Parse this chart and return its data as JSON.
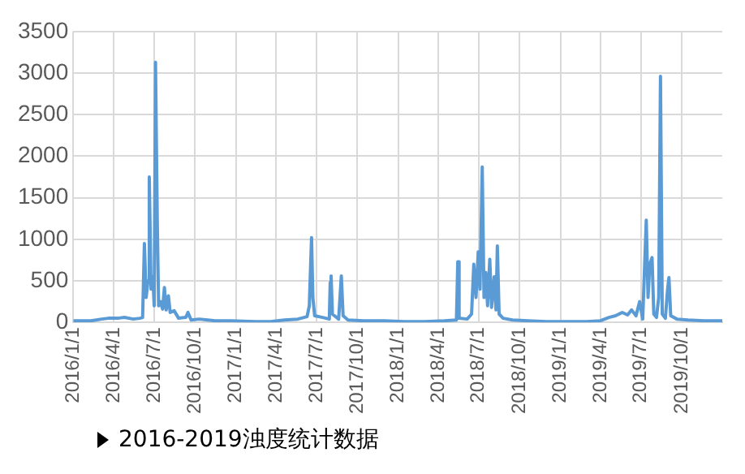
{
  "chart_data": {
    "type": "line",
    "annotations": [
      "2016-2019浊度统计数据"
    ],
    "x": [
      "2016-01-01",
      "2016-02-10",
      "2016-03-05",
      "2016-03-20",
      "2016-04-10",
      "2016-04-25",
      "2016-05-15",
      "2016-05-30",
      "2016-06-05",
      "2016-06-09",
      "2016-06-13",
      "2016-06-17",
      "2016-06-20",
      "2016-06-24",
      "2016-06-28",
      "2016-07-01",
      "2016-07-04",
      "2016-07-08",
      "2016-07-11",
      "2016-07-15",
      "2016-07-20",
      "2016-07-24",
      "2016-07-28",
      "2016-08-02",
      "2016-08-06",
      "2016-08-15",
      "2016-08-25",
      "2016-09-10",
      "2016-09-15",
      "2016-09-22",
      "2016-10-10",
      "2016-11-15",
      "2016-12-20",
      "2017-02-15",
      "2017-03-20",
      "2017-04-20",
      "2017-05-20",
      "2017-06-10",
      "2017-06-15",
      "2017-06-20",
      "2017-06-23",
      "2017-06-27",
      "2017-07-15",
      "2017-07-30",
      "2017-08-01",
      "2017-08-03",
      "2017-08-06",
      "2017-08-20",
      "2017-08-26",
      "2017-08-30",
      "2017-09-10",
      "2017-10-15",
      "2017-12-01",
      "2018-01-15",
      "2018-03-01",
      "2018-04-15",
      "2018-05-12",
      "2018-05-15",
      "2018-05-18",
      "2018-06-05",
      "2018-06-15",
      "2018-06-20",
      "2018-06-25",
      "2018-06-30",
      "2018-07-04",
      "2018-07-09",
      "2018-07-13",
      "2018-07-17",
      "2018-07-21",
      "2018-07-26",
      "2018-07-30",
      "2018-08-05",
      "2018-08-09",
      "2018-08-12",
      "2018-08-16",
      "2018-08-25",
      "2018-09-15",
      "2018-10-20",
      "2018-12-01",
      "2019-01-15",
      "2019-03-01",
      "2019-04-01",
      "2019-04-20",
      "2019-05-05",
      "2019-05-20",
      "2019-06-01",
      "2019-06-10",
      "2019-06-20",
      "2019-06-28",
      "2019-07-05",
      "2019-07-13",
      "2019-07-17",
      "2019-07-21",
      "2019-07-26",
      "2019-07-30",
      "2019-08-05",
      "2019-08-10",
      "2019-08-14",
      "2019-08-18",
      "2019-08-25",
      "2019-08-30",
      "2019-09-02",
      "2019-09-06",
      "2019-09-20",
      "2019-10-15",
      "2019-11-20",
      "2019-12-31"
    ],
    "series": [
      {
        "color": "#5b9bd5",
        "values": [
          20,
          20,
          40,
          50,
          50,
          60,
          40,
          50,
          60,
          950,
          300,
          500,
          1750,
          400,
          550,
          200,
          3130,
          1200,
          200,
          250,
          160,
          420,
          150,
          320,
          120,
          140,
          50,
          60,
          120,
          30,
          40,
          20,
          20,
          10,
          10,
          30,
          40,
          70,
          200,
          1020,
          300,
          80,
          60,
          40,
          480,
          560,
          100,
          40,
          560,
          80,
          30,
          20,
          20,
          10,
          10,
          20,
          30,
          730,
          50,
          40,
          100,
          700,
          300,
          850,
          400,
          1870,
          300,
          600,
          200,
          760,
          180,
          550,
          150,
          920,
          100,
          50,
          30,
          20,
          10,
          10,
          10,
          20,
          60,
          80,
          120,
          90,
          150,
          80,
          250,
          40,
          1230,
          300,
          700,
          780,
          100,
          60,
          300,
          2960,
          100,
          50,
          400,
          540,
          80,
          40,
          30,
          20,
          20
        ]
      }
    ],
    "xlim": [
      "2016-01-01",
      "2019-12-31"
    ],
    "xticks": [
      {
        "value": "2016-01-01",
        "label": "2016/1/1"
      },
      {
        "value": "2016-04-01",
        "label": "2016/4/1"
      },
      {
        "value": "2016-07-01",
        "label": "2016/7/1"
      },
      {
        "value": "2016-10-01",
        "label": "2016/10/1"
      },
      {
        "value": "2017-01-01",
        "label": "2017/1/1"
      },
      {
        "value": "2017-04-01",
        "label": "2017/4/1"
      },
      {
        "value": "2017-07-01",
        "label": "2017/7/1"
      },
      {
        "value": "2017-10-01",
        "label": "2017/10/1"
      },
      {
        "value": "2018-01-01",
        "label": "2018/1/1"
      },
      {
        "value": "2018-04-01",
        "label": "2018/4/1"
      },
      {
        "value": "2018-07-01",
        "label": "2018/7/1"
      },
      {
        "value": "2018-10-01",
        "label": "2018/10/1"
      },
      {
        "value": "2019-01-01",
        "label": "2019/1/1"
      },
      {
        "value": "2019-04-01",
        "label": "2019/4/1"
      },
      {
        "value": "2019-07-01",
        "label": "2019/7/1"
      },
      {
        "value": "2019-10-01",
        "label": "2019/10/1"
      }
    ],
    "ylim": [
      0,
      3500
    ],
    "yticks": [
      0,
      500,
      1000,
      1500,
      2000,
      2500,
      3000,
      3500
    ],
    "grid": true,
    "legend": false,
    "marker": "none",
    "line_style": "solid"
  }
}
